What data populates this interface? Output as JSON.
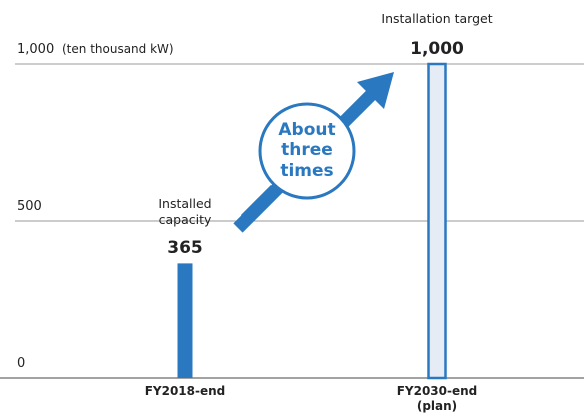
{
  "chart_data": {
    "type": "bar",
    "categories": [
      "FY2018-end",
      "FY2030-end (plan)"
    ],
    "values": [
      365,
      1000
    ],
    "value_labels": [
      "365",
      "1,000"
    ],
    "colors": [
      "#2a78c0",
      "#e6ecf6"
    ],
    "edge_color": "#2a78c0",
    "ylim": [
      0,
      1000
    ],
    "yticks": [
      0,
      500,
      {
        "value": 1000,
        "label": "1,000"
      }
    ],
    "y_unit": "(ten thousand kW)",
    "annotations": [
      "Installed capacity",
      "Installation target",
      "About three times"
    ],
    "grid": true
  }
}
